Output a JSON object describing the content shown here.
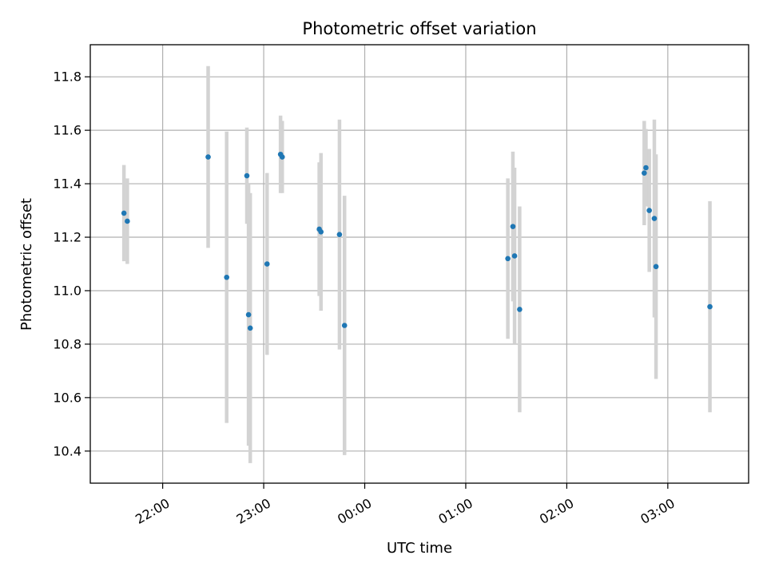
{
  "chart_data": {
    "type": "scatter",
    "title": "Photometric offset variation",
    "xlabel": "UTC time",
    "ylabel": "Photometric offset",
    "x_axis_kind": "time",
    "xlim": [
      "21:17",
      "03:48"
    ],
    "ylim": [
      10.28,
      11.92
    ],
    "x_ticks": [
      "22:00",
      "23:00",
      "00:00",
      "01:00",
      "02:00",
      "03:00"
    ],
    "y_ticks": [
      10.4,
      10.6,
      10.8,
      11.0,
      11.2,
      11.4,
      11.6,
      11.8
    ],
    "y_tick_labels": [
      "10.4",
      "10.6",
      "10.8",
      "11.0",
      "11.2",
      "11.4",
      "11.6",
      "11.8"
    ],
    "grid": true,
    "colors": {
      "point": "#1f77b4",
      "errorbar": "#d3d3d3",
      "grid": "#b0b0b0"
    },
    "points": [
      {
        "x": "21:37",
        "y": 11.29,
        "err": 0.18
      },
      {
        "x": "21:39",
        "y": 11.26,
        "err": 0.16
      },
      {
        "x": "22:27",
        "y": 11.5,
        "err": 0.34
      },
      {
        "x": "22:38",
        "y": 11.05,
        "err": 0.545
      },
      {
        "x": "22:50",
        "y": 11.43,
        "err": 0.18
      },
      {
        "x": "22:51",
        "y": 10.91,
        "err": 0.49
      },
      {
        "x": "22:52",
        "y": 10.86,
        "err": 0.505
      },
      {
        "x": "23:02",
        "y": 11.1,
        "err": 0.34
      },
      {
        "x": "23:10",
        "y": 11.51,
        "err": 0.145
      },
      {
        "x": "23:11",
        "y": 11.5,
        "err": 0.135
      },
      {
        "x": "23:33",
        "y": 11.23,
        "err": 0.25
      },
      {
        "x": "23:34",
        "y": 11.22,
        "err": 0.295
      },
      {
        "x": "23:45",
        "y": 11.21,
        "err": 0.43
      },
      {
        "x": "23:48",
        "y": 10.87,
        "err": 0.485
      },
      {
        "x": "01:25",
        "y": 11.12,
        "err": 0.3
      },
      {
        "x": "01:28",
        "y": 11.24,
        "err": 0.28
      },
      {
        "x": "01:29",
        "y": 11.13,
        "err": 0.33
      },
      {
        "x": "01:32",
        "y": 10.93,
        "err": 0.385
      },
      {
        "x": "02:46",
        "y": 11.44,
        "err": 0.195
      },
      {
        "x": "02:47",
        "y": 11.46,
        "err": 0.145
      },
      {
        "x": "02:49",
        "y": 11.3,
        "err": 0.23
      },
      {
        "x": "02:52",
        "y": 11.27,
        "err": 0.37
      },
      {
        "x": "02:53",
        "y": 11.09,
        "err": 0.42
      },
      {
        "x": "03:25",
        "y": 10.94,
        "err": 0.395
      }
    ]
  }
}
